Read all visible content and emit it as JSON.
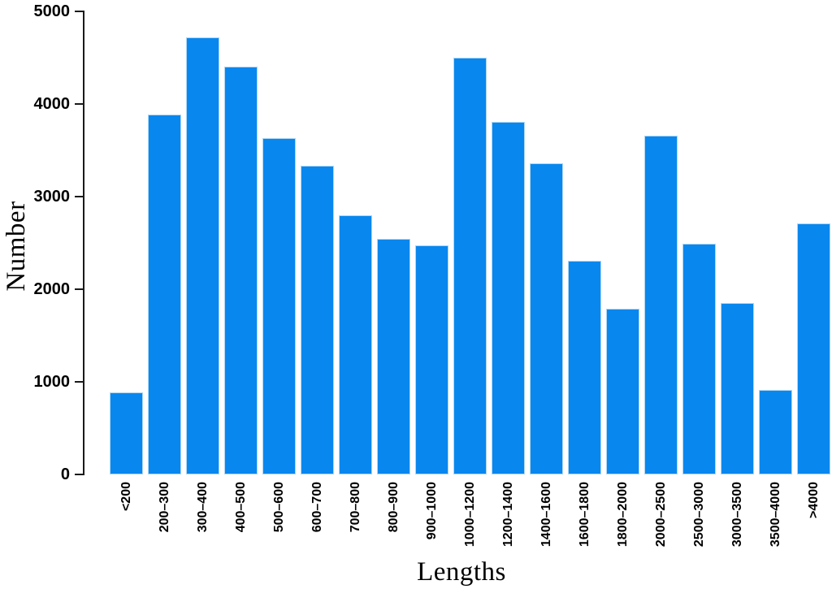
{
  "colors": {
    "bar_fill": "#0887ef",
    "bar_edge": "#aed7f4",
    "axis": "#1a1a1a",
    "text": "#000000",
    "background": "#ffffff"
  },
  "chart_data": {
    "type": "bar",
    "title": "",
    "xlabel": "Lengths",
    "ylabel": "Number",
    "categories": [
      "<200",
      "200–300",
      "300–400",
      "400–500",
      "500–600",
      "600–700",
      "700–800",
      "800–900",
      "900–1000",
      "1000–1200",
      "1200–1400",
      "1400–1600",
      "1600–1800",
      "1800–2000",
      "2000–2500",
      "2500–3000",
      "3000–3500",
      "3500–4000",
      ">4000"
    ],
    "values": [
      890,
      3890,
      4720,
      4400,
      3630,
      3330,
      2800,
      2540,
      2470,
      4500,
      3810,
      3360,
      2310,
      1790,
      3660,
      2490,
      1850,
      910,
      2710
    ],
    "ylim": [
      0,
      5000
    ],
    "yticks": [
      0,
      1000,
      2000,
      3000,
      4000,
      5000
    ],
    "grid": false,
    "legend": "none",
    "bar_orientation": "vertical",
    "x_tick_rotation_degrees": 90
  }
}
